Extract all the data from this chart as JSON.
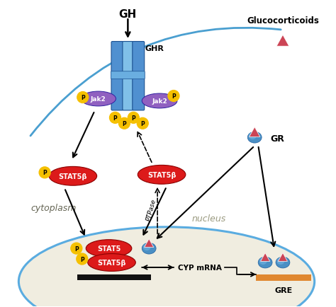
{
  "bg_color": "#ffffff",
  "nucleus_color": "#f0ede0",
  "nucleus_border": "#5aace0",
  "stat5_color": "#dc1a1a",
  "jak2_color": "#9060c0",
  "p_color": "#f5c000",
  "receptor_color": "#5090d0",
  "receptor_light": "#80c0e8",
  "triangle_color": "#cc4455",
  "gr_body_color": "#4a8fc4",
  "gre_bar_color": "#e08830",
  "black_bar_color": "#111111",
  "arrow_color": "#000000",
  "blue_arc_color": "#4a9fd0",
  "cytoplasm_text": "cytoplasm",
  "nucleus_text": "nucleus",
  "gh_label": "GH",
  "ghr_label": "GHR",
  "gr_label": "GR",
  "gre_label": "GRE",
  "glucocorticoids_label": "Glucocorticoids",
  "cyp_mrna_label": "CYP mRNA",
  "ptpase_label": "PTPase"
}
